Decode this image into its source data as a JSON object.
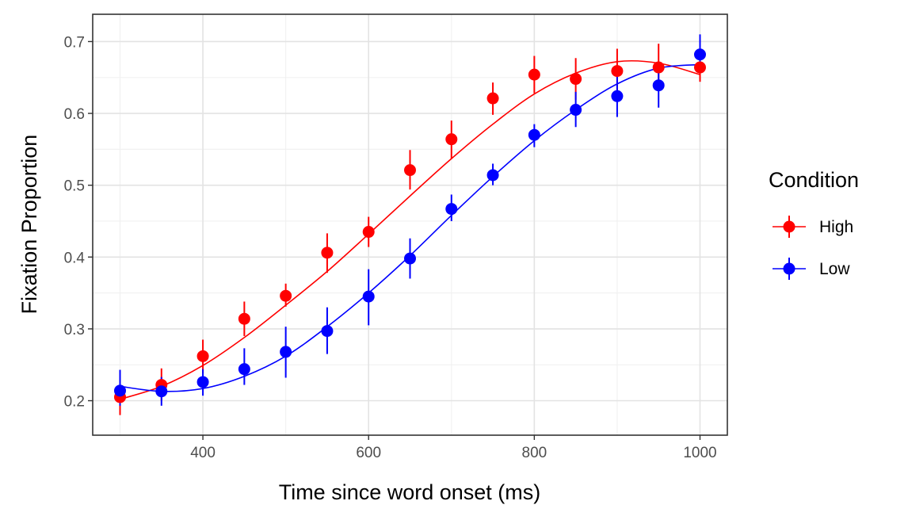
{
  "chart_data": {
    "type": "scatter",
    "title": "",
    "xlabel": "Time since word onset (ms)",
    "ylabel": "Fixation Proportion",
    "xlim": [
      267,
      1033
    ],
    "ylim": [
      0.152,
      0.738
    ],
    "xticks": [
      400,
      600,
      800,
      1000
    ],
    "yticks": [
      0.2,
      0.3,
      0.4,
      0.5,
      0.6,
      0.7
    ],
    "xtick_labels": [
      "400",
      "600",
      "800",
      "1000"
    ],
    "ytick_labels": [
      "0.2",
      "0.3",
      "0.4",
      "0.5",
      "0.6",
      "0.7"
    ],
    "grid": true,
    "legend": {
      "title": "Condition",
      "position": "right"
    },
    "x": [
      300,
      350,
      400,
      450,
      500,
      550,
      600,
      650,
      700,
      750,
      800,
      850,
      900,
      950,
      1000
    ],
    "series": [
      {
        "name": "High",
        "color": "#ff0000",
        "values": [
          0.205,
          0.222,
          0.262,
          0.314,
          0.346,
          0.406,
          0.435,
          0.521,
          0.564,
          0.621,
          0.654,
          0.648,
          0.659,
          0.664,
          0.664
        ],
        "err_low": [
          0.18,
          0.2,
          0.238,
          0.29,
          0.331,
          0.378,
          0.414,
          0.494,
          0.537,
          0.598,
          0.628,
          0.619,
          0.632,
          0.635,
          0.644
        ],
        "err_high": [
          0.228,
          0.245,
          0.285,
          0.338,
          0.363,
          0.433,
          0.456,
          0.549,
          0.59,
          0.643,
          0.68,
          0.677,
          0.69,
          0.697,
          0.684
        ],
        "fit": [
          0.202,
          0.22,
          0.249,
          0.288,
          0.333,
          0.38,
          0.432,
          0.485,
          0.537,
          0.585,
          0.627,
          0.656,
          0.672,
          0.67,
          0.654
        ]
      },
      {
        "name": "Low",
        "color": "#0000ff",
        "values": [
          0.214,
          0.213,
          0.226,
          0.244,
          0.268,
          0.297,
          0.345,
          0.398,
          0.467,
          0.514,
          0.57,
          0.605,
          0.624,
          0.639,
          0.682
        ],
        "err_low": [
          0.193,
          0.193,
          0.207,
          0.222,
          0.232,
          0.265,
          0.305,
          0.37,
          0.45,
          0.5,
          0.553,
          0.581,
          0.595,
          0.608,
          0.657
        ],
        "err_high": [
          0.243,
          0.233,
          0.244,
          0.273,
          0.303,
          0.33,
          0.383,
          0.426,
          0.487,
          0.53,
          0.585,
          0.63,
          0.652,
          0.67,
          0.71
        ],
        "fit": [
          0.22,
          0.213,
          0.217,
          0.234,
          0.262,
          0.303,
          0.35,
          0.402,
          0.458,
          0.512,
          0.562,
          0.605,
          0.641,
          0.663,
          0.668
        ]
      }
    ]
  }
}
